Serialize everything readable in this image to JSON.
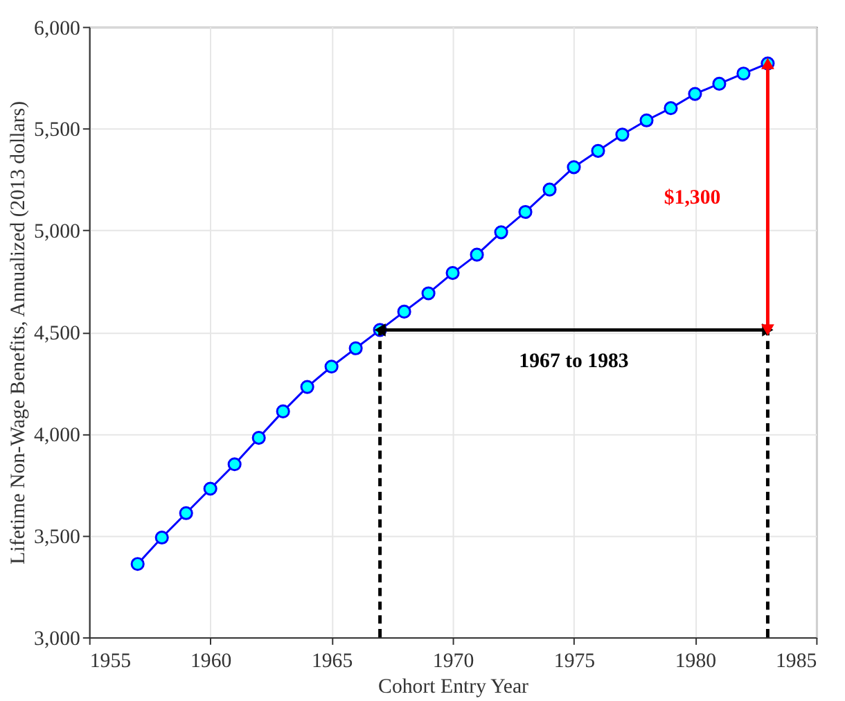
{
  "chart_data": {
    "type": "line",
    "xlabel": "Cohort Entry Year",
    "ylabel": "Lifetime Non-Wage Benefits, Annualized (2013 dollars)",
    "x": [
      1957,
      1958,
      1959,
      1960,
      1961,
      1962,
      1963,
      1964,
      1965,
      1966,
      1967,
      1968,
      1969,
      1970,
      1971,
      1972,
      1973,
      1974,
      1975,
      1976,
      1977,
      1978,
      1979,
      1980,
      1981,
      1982,
      1983
    ],
    "series": [
      {
        "color": "#0000ff",
        "values": [
          3360,
          3490,
          3610,
          3730,
          3850,
          3980,
          4110,
          4230,
          4330,
          4420,
          4510,
          4600,
          4690,
          4790,
          4880,
          4990,
          5090,
          5200,
          5310,
          5390,
          5470,
          5540,
          5600,
          5670,
          5720,
          5770,
          5820
        ]
      }
    ],
    "xlim": [
      1955,
      1985
    ],
    "xticks": [
      1955,
      1960,
      1965,
      1970,
      1975,
      1980,
      1985
    ],
    "ylim": [
      3000,
      6000
    ],
    "yticks": [
      {
        "value": 3000,
        "label": "3,000"
      },
      {
        "value": 3500,
        "label": "3,500"
      },
      {
        "value": 4000,
        "label": "4,000"
      },
      {
        "value": 4500,
        "label": "4,500"
      },
      {
        "value": 5000,
        "label": "5,000"
      },
      {
        "value": 5500,
        "label": "5,500"
      },
      {
        "value": 6000,
        "label": "6,000"
      }
    ],
    "grid": true,
    "marker": "circle",
    "line_style": "solid",
    "ref_lines": [
      {
        "axis": "x",
        "value": 1967,
        "color": "#000000",
        "line_style": "dashed"
      },
      {
        "axis": "x",
        "value": 1983,
        "color": "#000000",
        "line_style": "dashed"
      }
    ],
    "annotations": [
      "$1,300",
      "1967 to 1983"
    ]
  }
}
